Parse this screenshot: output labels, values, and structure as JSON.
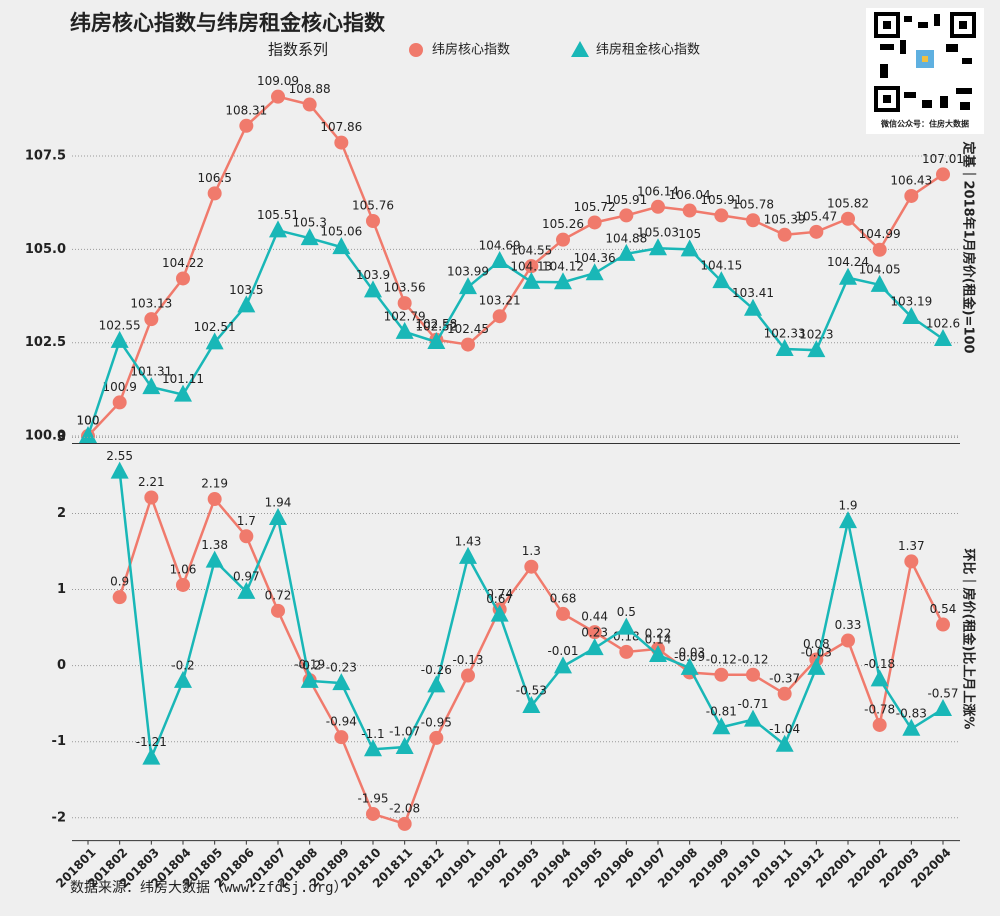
{
  "chart_data": [
    {
      "type": "line",
      "title": "纬房核心指数与纬房租金核心指数",
      "legend_title": "指数系列",
      "y_label": "定基｜2018年1月房价(租金)=100",
      "ylim": [
        99.8,
        110.3
      ],
      "yticks": [
        {
          "value": 100,
          "label": "100.0"
        },
        {
          "value": 102.5,
          "label": "102.5"
        },
        {
          "value": 105,
          "label": "105.0"
        },
        {
          "value": 107.5,
          "label": "107.5"
        }
      ],
      "grid": true,
      "series": [
        {
          "name": "纬房核心指数",
          "color": "#f07a6c",
          "marker": "circle",
          "values": [
            100,
            100.9,
            103.13,
            104.22,
            106.5,
            108.31,
            109.09,
            108.88,
            107.86,
            105.76,
            103.56,
            102.58,
            102.45,
            103.21,
            104.55,
            105.26,
            105.72,
            105.91,
            106.14,
            106.04,
            105.91,
            105.78,
            105.39,
            105.47,
            105.82,
            104.99,
            106.43,
            107.01
          ]
        },
        {
          "name": "纬房租金核心指数",
          "color": "#19b7b7",
          "marker": "triangle",
          "values": [
            100,
            102.55,
            101.31,
            101.11,
            102.51,
            103.5,
            105.51,
            105.3,
            105.06,
            103.9,
            102.79,
            102.52,
            103.99,
            104.69,
            104.13,
            104.12,
            104.36,
            104.88,
            105.03,
            105,
            104.15,
            103.41,
            102.33,
            102.3,
            104.24,
            104.05,
            103.19,
            102.6
          ]
        }
      ]
    },
    {
      "type": "line",
      "y_label": "环比｜房价(租金)比上月上涨%",
      "categories": [
        "201801",
        "201802",
        "201803",
        "201804",
        "201805",
        "201806",
        "201807",
        "201808",
        "201809",
        "201810",
        "201811",
        "201812",
        "201901",
        "201902",
        "201903",
        "201904",
        "201905",
        "201906",
        "201907",
        "201908",
        "201909",
        "201910",
        "201911",
        "201912",
        "202001",
        "202002",
        "202003",
        "202004"
      ],
      "ylim": [
        -2.3,
        3
      ],
      "yticks": [
        -2,
        -1,
        0,
        1,
        2,
        3
      ],
      "grid": true,
      "series": [
        {
          "color": "#f07a6c",
          "marker": "circle",
          "values": [
            null,
            0.9,
            2.21,
            1.06,
            2.19,
            1.7,
            0.72,
            -0.19,
            -0.94,
            -1.95,
            -2.08,
            -0.95,
            -0.13,
            0.74,
            1.3,
            0.68,
            0.44,
            0.18,
            0.22,
            -0.09,
            -0.12,
            -0.12,
            -0.37,
            0.08,
            0.33,
            -0.78,
            1.37,
            0.54
          ]
        },
        {
          "color": "#19b7b7",
          "marker": "triangle",
          "values": [
            null,
            2.55,
            -1.21,
            -0.2,
            1.38,
            0.97,
            1.94,
            -0.2,
            -0.23,
            -1.1,
            -1.07,
            -0.26,
            1.43,
            0.67,
            -0.53,
            -0.01,
            0.23,
            0.5,
            0.14,
            -0.03,
            -0.81,
            -0.71,
            -1.04,
            -0.03,
            1.9,
            -0.18,
            -0.83,
            -0.57
          ]
        }
      ]
    }
  ],
  "source": "数据来源：纬房大数据（www.zfdsj.org）",
  "qr_caption": "微信公众号：住房大数据"
}
